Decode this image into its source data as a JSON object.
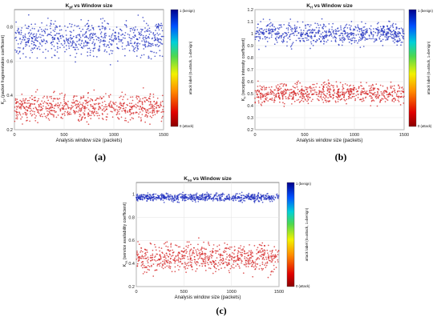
{
  "panels": [
    {
      "caption": "(a)",
      "title_main": "K",
      "title_sub": "pf",
      "title_rest": " vs Window size",
      "ylabel_main": "K",
      "ylabel_sub": "pf",
      "ylabel_rest": " (packet fragmentation coefficient)",
      "xlabel": "Analysis window size (packets)",
      "xticks": [
        "0",
        "500",
        "1000",
        "1500"
      ],
      "yticks": [
        "0.2",
        "0.4",
        "0.6",
        "0.8"
      ],
      "colorbar": {
        "top": "1 (benign)",
        "bottom": "0 (attack)",
        "label": "attack label (0=attack, 1=benign)"
      }
    },
    {
      "caption": "(b)",
      "title_main": "K",
      "title_sub": "ri",
      "title_rest": " vs Window size",
      "ylabel_main": "K",
      "ylabel_sub": "ri",
      "ylabel_rest": " (reception intensity coefficient)",
      "xlabel": "Analysis window size (packets)",
      "xticks": [
        "0",
        "500",
        "1000",
        "1500"
      ],
      "yticks": [
        "0.2",
        "0.3",
        "0.4",
        "0.5",
        "0.6",
        "0.7",
        "0.8",
        "0.9",
        "1",
        "1.1",
        "1.2"
      ],
      "colorbar": {
        "top": "1 (benign)",
        "bottom": "0 (attack)",
        "label": "attack label (0=attack, 1=benign)"
      }
    },
    {
      "caption": "(c)",
      "title_main": "K",
      "title_sub": "sa",
      "title_rest": " vs Window size",
      "ylabel_main": "K",
      "ylabel_sub": "sa",
      "ylabel_rest": " (service availability coefficient)",
      "xlabel": "Analysis window size (packets)",
      "xticks": [
        "0",
        "500",
        "1000",
        "1500"
      ],
      "yticks": [
        "0.2",
        "0.4",
        "0.6",
        "0.8",
        "1"
      ],
      "colorbar": {
        "top": "1 (benign)",
        "bottom": "0 (attack)",
        "label": "attack label (0=attack, 1=benign)"
      }
    }
  ],
  "chart_data": [
    {
      "type": "scatter",
      "title": "Kpf vs Window size",
      "xlabel": "Analysis window size (packets)",
      "ylabel": "Kpf (packet fragmentation coefficient)",
      "xlim": [
        0,
        1500
      ],
      "ylim": [
        0.2,
        0.9
      ],
      "grid": true,
      "series": [
        {
          "name": "1 (benign)",
          "color": "#1f2fbf",
          "x_range": [
            0,
            1500
          ],
          "y_center": 0.73,
          "y_spread": 0.09,
          "n": 700
        },
        {
          "name": "0 (attack)",
          "color": "#d42020",
          "x_range": [
            0,
            1500
          ],
          "y_center": 0.33,
          "y_spread": 0.07,
          "n": 700
        }
      ]
    },
    {
      "type": "scatter",
      "title": "Kri vs Window size",
      "xlabel": "Analysis window size (packets)",
      "ylabel": "Kri (reception intensity coefficient)",
      "xlim": [
        0,
        1500
      ],
      "ylim": [
        0.2,
        1.2
      ],
      "grid": true,
      "series": [
        {
          "name": "1 (benign)",
          "color": "#1f2fbf",
          "x_range": [
            0,
            1500
          ],
          "y_center": 1.0,
          "y_spread": 0.08,
          "n": 700
        },
        {
          "name": "0 (attack)",
          "color": "#d42020",
          "x_range": [
            0,
            1500
          ],
          "y_center": 0.5,
          "y_spread": 0.07,
          "n": 700
        }
      ]
    },
    {
      "type": "scatter",
      "title": "Ksa vs Window size",
      "xlabel": "Analysis window size (packets)",
      "ylabel": "Ksa (service availability coefficient)",
      "xlim": [
        0,
        1500
      ],
      "ylim": [
        0.2,
        1.1
      ],
      "grid": true,
      "series": [
        {
          "name": "1 (benign)",
          "color": "#1f2fbf",
          "x_range": [
            0,
            1500
          ],
          "y_center": 0.97,
          "y_spread": 0.03,
          "n": 700
        },
        {
          "name": "0 (attack)",
          "color": "#d42020",
          "x_range": [
            0,
            1500
          ],
          "y_center": 0.45,
          "y_spread": 0.11,
          "n": 700
        }
      ]
    }
  ]
}
